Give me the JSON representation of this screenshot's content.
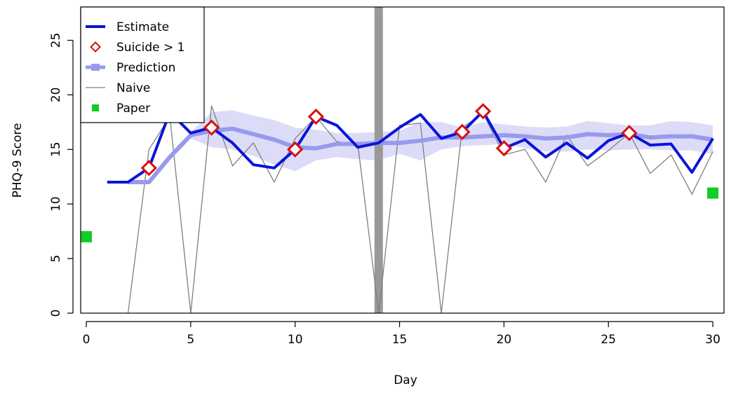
{
  "chart_data": {
    "type": "line",
    "title": "",
    "xlabel": "Day",
    "ylabel": "PHQ-9 Score",
    "xlim": [
      0,
      30
    ],
    "ylim": [
      0,
      28
    ],
    "x_ticks": [
      0,
      5,
      10,
      15,
      20,
      25,
      30
    ],
    "y_ticks": [
      0,
      5,
      10,
      15,
      20,
      25
    ],
    "legend_position": "top-left",
    "grid": false,
    "vertical_marker_day": 14,
    "colors": {
      "estimate": "#0a14d8",
      "suicide": "#d81010",
      "prediction": "#9999ee",
      "prediction_band": "#dcdcf8",
      "naive": "#7f7f7f",
      "paper": "#11cc22",
      "marker_bar": "#999999"
    },
    "legend": [
      {
        "key": "estimate",
        "label": "Estimate"
      },
      {
        "key": "suicide",
        "label": "Suicide > 1"
      },
      {
        "key": "prediction",
        "label": "Prediction"
      },
      {
        "key": "naive",
        "label": "Naive"
      },
      {
        "key": "paper",
        "label": "Paper"
      }
    ],
    "series": [
      {
        "name": "Estimate",
        "x": [
          1,
          2,
          3,
          4,
          5,
          6,
          7,
          8,
          9,
          10,
          11,
          12,
          13,
          14,
          15,
          16,
          17,
          18,
          19,
          20,
          21,
          22,
          23,
          24,
          25,
          26,
          27,
          28,
          29,
          30
        ],
        "y": [
          12,
          12,
          13.3,
          18.4,
          16.5,
          17,
          15.6,
          13.6,
          13.3,
          15,
          18,
          17.2,
          15.2,
          15.6,
          17,
          18.2,
          16,
          16.6,
          18.5,
          15.1,
          15.9,
          14.3,
          15.6,
          14.2,
          15.8,
          16.5,
          15.4,
          15.5,
          12.9,
          16
        ]
      },
      {
        "name": "Suicide > 1",
        "x": [
          3,
          6,
          10,
          11,
          18,
          19,
          20,
          26
        ],
        "y": [
          13.3,
          17,
          15,
          18,
          16.6,
          18.5,
          15.1,
          16.5
        ]
      },
      {
        "name": "Prediction",
        "x": [
          2,
          3,
          4,
          5,
          6,
          7,
          8,
          9,
          10,
          11,
          12,
          13,
          14,
          15,
          16,
          17,
          18,
          19,
          20,
          21,
          22,
          23,
          24,
          25,
          26,
          27,
          28,
          29,
          30
        ],
        "y": [
          12,
          12,
          14.3,
          16.3,
          16.7,
          16.9,
          16.4,
          15.9,
          15.2,
          15.1,
          15.5,
          15.5,
          15.6,
          15.6,
          15.8,
          16.1,
          16.1,
          16.2,
          16.3,
          16.2,
          16,
          16.1,
          16.4,
          16.3,
          16.4,
          16.1,
          16.2,
          16.2,
          15.9
        ],
        "band_lower": [
          12,
          12,
          14.0,
          16.0,
          15.2,
          15.0,
          14.4,
          13.6,
          13.0,
          14.0,
          14.3,
          14.1,
          14.0,
          14.6,
          14.0,
          15.0,
          15.3,
          15.4,
          15.5,
          15.1,
          14.8,
          14.8,
          15.0,
          14.9,
          15.0,
          15.0,
          14.9,
          14.9,
          14.6
        ],
        "band_upper": [
          12,
          12,
          14.6,
          16.6,
          18.4,
          18.6,
          18.1,
          17.7,
          17.0,
          16.8,
          16.5,
          16.5,
          16.6,
          16.7,
          17.5,
          17.5,
          17.0,
          17.5,
          17.3,
          17.1,
          17.0,
          17.1,
          17.6,
          17.4,
          17.2,
          17.2,
          17.6,
          17.5,
          17.2
        ]
      },
      {
        "name": "Naive",
        "x": [
          2,
          3,
          4,
          5,
          6,
          7,
          8,
          9,
          10,
          11,
          12,
          13,
          14,
          15,
          16,
          17,
          18,
          19,
          20,
          21,
          22,
          23,
          24,
          25,
          26,
          27,
          28,
          29,
          30
        ],
        "y": [
          0,
          15,
          18,
          0,
          19,
          13.5,
          15.6,
          12,
          16,
          18,
          15.7,
          15.5,
          0,
          17.2,
          17.4,
          0,
          17,
          18.3,
          14.5,
          15,
          12,
          16.3,
          13.5,
          14.9,
          16.5,
          12.8,
          14.5,
          10.9,
          14.8
        ]
      },
      {
        "name": "Paper",
        "x": [
          0,
          30
        ],
        "y": [
          7,
          11
        ]
      }
    ]
  }
}
